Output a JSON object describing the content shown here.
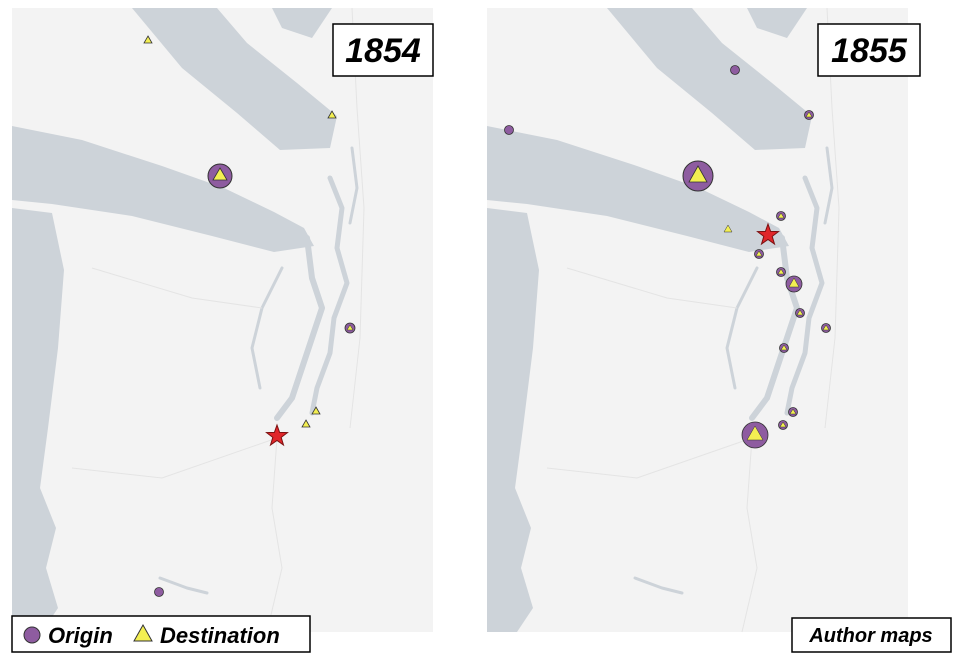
{
  "panels": [
    {
      "year": "1854"
    },
    {
      "year": "1855"
    }
  ],
  "legend": {
    "origin": "Origin",
    "destination": "Destination"
  },
  "credit": "Author maps"
}
